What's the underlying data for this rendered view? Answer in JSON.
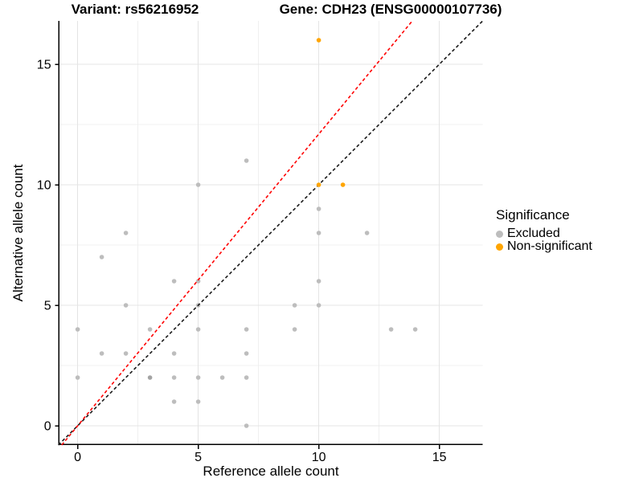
{
  "titles": {
    "left": "Variant: rs56216952",
    "right": "Gene: CDH23 (ENSG00000107736)"
  },
  "axes": {
    "x": {
      "label": "Reference allele count",
      "ticks": [
        0,
        5,
        10,
        15
      ],
      "minor": [
        2.5,
        7.5,
        12.5
      ],
      "range": [
        -0.8,
        16.8
      ]
    },
    "y": {
      "label": "Alternative allele count",
      "ticks": [
        0,
        5,
        10,
        15
      ],
      "minor": [
        2.5,
        7.5,
        12.5
      ],
      "range": [
        -0.8,
        16.8
      ]
    }
  },
  "legend": {
    "title": "Significance",
    "items": [
      {
        "label": "Excluded",
        "color": "#BDBDBD",
        "icon": "legend-dot"
      },
      {
        "label": "Non-significant",
        "color": "#FFA500",
        "icon": "legend-dot"
      }
    ]
  },
  "colors": {
    "excluded_point": "#BDBDBD",
    "excluded_overlap_point": "#A3A3A3",
    "nonsignificant_point": "#FFA500",
    "identity_line": "#1A1A1A",
    "fit_line": "#FF0000",
    "major_grid": "#E4E4E4",
    "minor_grid": "#F0F0F0",
    "axis_line": "#000000"
  },
  "chart_data": {
    "type": "scatter",
    "title": "Variant: rs56216952 | Gene: CDH23 (ENSG00000107736)",
    "xlabel": "Reference allele count",
    "ylabel": "Alternative allele count",
    "xlim": [
      -0.8,
      16.8
    ],
    "ylim": [
      -0.8,
      16.8
    ],
    "grid": true,
    "legend_position": "right",
    "series": [
      {
        "name": "Excluded",
        "color": "#BDBDBD",
        "points": [
          [
            0,
            2
          ],
          [
            0,
            4
          ],
          [
            1,
            3
          ],
          [
            1,
            7
          ],
          [
            2,
            3
          ],
          [
            2,
            5
          ],
          [
            2,
            8
          ],
          [
            3,
            4
          ],
          [
            4,
            1
          ],
          [
            4,
            2
          ],
          [
            4,
            3
          ],
          [
            4,
            6
          ],
          [
            5,
            1
          ],
          [
            5,
            2
          ],
          [
            5,
            4
          ],
          [
            5,
            5
          ],
          [
            5,
            6
          ],
          [
            5,
            10
          ],
          [
            6,
            2
          ],
          [
            7,
            0
          ],
          [
            7,
            2
          ],
          [
            7,
            3
          ],
          [
            7,
            4
          ],
          [
            7,
            11
          ],
          [
            9,
            4
          ],
          [
            9,
            5
          ],
          [
            10,
            5
          ],
          [
            10,
            6
          ],
          [
            10,
            8
          ],
          [
            10,
            9
          ],
          [
            12,
            8
          ],
          [
            13,
            4
          ],
          [
            14,
            4
          ]
        ]
      },
      {
        "name": "Excluded (overlapping)",
        "color": "#A3A3A3",
        "points": [
          [
            3,
            2
          ]
        ]
      },
      {
        "name": "Non-significant",
        "color": "#FFA500",
        "points": [
          [
            10,
            10
          ],
          [
            10,
            16
          ],
          [
            11,
            10
          ]
        ]
      }
    ],
    "lines": [
      {
        "name": "identity-line",
        "color": "#1A1A1A",
        "dash": [
          4,
          3
        ],
        "from": [
          -0.8,
          -0.8
        ],
        "to": [
          16.8,
          16.8
        ]
      },
      {
        "name": "fit-line",
        "color": "#FF0000",
        "dash": [
          4,
          3
        ],
        "from": [
          -0.66,
          -0.8
        ],
        "to": [
          13.88,
          16.8
        ],
        "slope": 1.21,
        "intercept": 0
      }
    ]
  }
}
